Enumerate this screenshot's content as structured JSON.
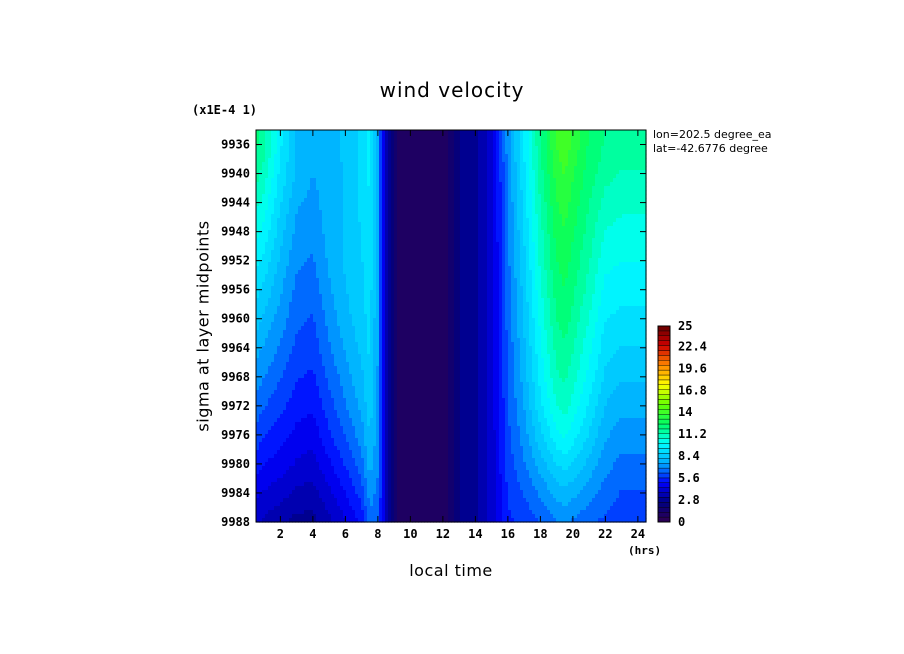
{
  "figure": {
    "title": "wind velocity",
    "scale_note": "(x1E-4 1)",
    "location": {
      "lon": "lon=202.5 degree_ea",
      "lat": "lat=-42.6776 degree"
    }
  },
  "chart_data": {
    "type": "heatmap",
    "title": "wind velocity",
    "xlabel": "local time",
    "x_unit": "(hrs)",
    "ylabel": "sigma at layer midpoints",
    "y_scale_note": "(x1E-4 1)",
    "xlim": [
      0.5,
      24.5
    ],
    "ylim": [
      9934,
      9988
    ],
    "y_inverted": true,
    "x_ticks": [
      2,
      4,
      6,
      8,
      10,
      12,
      14,
      16,
      18,
      20,
      22,
      24
    ],
    "y_ticks": [
      9936,
      9940,
      9944,
      9948,
      9952,
      9956,
      9960,
      9964,
      9968,
      9972,
      9976,
      9980,
      9984,
      9988
    ],
    "x": [
      0.5,
      1,
      2,
      3,
      4,
      5,
      6,
      7,
      7.5,
      8,
      8.5,
      9,
      9.5,
      10,
      11,
      12,
      13,
      14,
      15,
      16,
      17,
      18,
      19,
      19.5,
      20,
      21,
      22,
      23,
      24,
      24.5
    ],
    "y": [
      9936,
      9940,
      9944,
      9948,
      9952,
      9956,
      9960,
      9964,
      9968,
      9972,
      9976,
      9980,
      9984,
      9988
    ],
    "z": [
      [
        12.0,
        11.5,
        9.5,
        8.0,
        7.8,
        8.0,
        8.2,
        9.0,
        9.5,
        7.5,
        3.5,
        1.5,
        0.8,
        0.8,
        0.8,
        0.8,
        2.5,
        3.0,
        4.0,
        7.2,
        9.5,
        11.8,
        13.8,
        14.2,
        13.6,
        12.4,
        11.8,
        11.6,
        11.5,
        11.5
      ],
      [
        11.5,
        11.0,
        9.2,
        8.0,
        7.5,
        7.8,
        8.2,
        9.0,
        9.5,
        7.5,
        3.5,
        1.5,
        0.8,
        0.8,
        0.8,
        0.8,
        2.5,
        3.0,
        4.0,
        7.0,
        9.2,
        11.6,
        13.4,
        13.8,
        13.2,
        12.2,
        11.5,
        11.2,
        11.2,
        11.2
      ],
      [
        10.8,
        10.4,
        8.8,
        7.6,
        7.3,
        7.8,
        8.2,
        8.9,
        9.4,
        7.5,
        3.5,
        1.5,
        0.8,
        0.8,
        0.8,
        0.8,
        2.5,
        3.0,
        4.0,
        6.9,
        9.0,
        11.3,
        13.1,
        13.4,
        12.9,
        11.9,
        11.0,
        10.8,
        10.8,
        10.8
      ],
      [
        10.2,
        9.8,
        8.4,
        7.3,
        7.0,
        7.8,
        8.2,
        8.8,
        9.3,
        7.5,
        3.5,
        1.5,
        0.8,
        0.8,
        0.8,
        0.8,
        2.5,
        3.0,
        4.0,
        6.8,
        8.8,
        11.0,
        12.8,
        13.1,
        12.6,
        11.6,
        10.6,
        10.4,
        10.4,
        10.4
      ],
      [
        9.6,
        9.2,
        8.0,
        7.0,
        6.8,
        7.6,
        8.2,
        8.7,
        9.2,
        7.5,
        3.5,
        1.5,
        0.8,
        0.8,
        0.8,
        0.8,
        2.5,
        3.0,
        4.0,
        6.7,
        8.6,
        10.8,
        12.5,
        12.8,
        12.3,
        11.3,
        10.2,
        10.0,
        10.0,
        10.0
      ],
      [
        9.0,
        8.6,
        7.6,
        6.7,
        6.5,
        7.4,
        8.1,
        8.6,
        9.1,
        7.5,
        3.5,
        1.5,
        0.8,
        0.8,
        0.8,
        0.8,
        2.5,
        3.0,
        4.0,
        6.6,
        8.4,
        10.5,
        12.2,
        12.5,
        12.0,
        11.0,
        9.8,
        9.6,
        9.6,
        9.6
      ],
      [
        8.4,
        8.0,
        7.2,
        6.4,
        6.2,
        7.1,
        7.9,
        8.5,
        9.0,
        7.5,
        3.5,
        1.5,
        0.8,
        0.8,
        0.8,
        0.8,
        2.5,
        3.0,
        4.0,
        6.5,
        8.2,
        10.2,
        11.9,
        12.2,
        11.7,
        10.6,
        9.4,
        9.2,
        9.2,
        9.2
      ],
      [
        7.8,
        7.4,
        6.8,
        6.1,
        5.9,
        6.8,
        7.6,
        8.3,
        8.9,
        7.5,
        3.5,
        1.5,
        0.8,
        0.8,
        0.8,
        0.8,
        2.5,
        3.0,
        4.0,
        6.4,
        8.0,
        9.9,
        11.5,
        11.8,
        11.3,
        10.2,
        9.0,
        8.7,
        8.7,
        8.7
      ],
      [
        7.2,
        6.9,
        6.3,
        5.7,
        5.5,
        6.4,
        7.2,
        8.0,
        8.7,
        7.4,
        3.5,
        1.5,
        0.8,
        0.8,
        0.8,
        0.8,
        2.5,
        3.0,
        4.0,
        6.3,
        7.8,
        9.6,
        11.1,
        11.4,
        10.9,
        9.8,
        8.6,
        8.2,
        8.2,
        8.2
      ],
      [
        6.6,
        6.3,
        5.8,
        5.3,
        5.1,
        6.0,
        6.8,
        7.7,
        8.5,
        7.3,
        3.5,
        1.5,
        0.8,
        0.8,
        0.8,
        0.8,
        2.5,
        3.0,
        4.0,
        6.2,
        7.5,
        9.2,
        10.6,
        10.9,
        10.4,
        9.3,
        8.1,
        7.7,
        7.7,
        7.7
      ],
      [
        6.0,
        5.7,
        5.3,
        4.8,
        4.6,
        5.5,
        6.3,
        7.2,
        8.2,
        7.2,
        3.5,
        1.5,
        0.8,
        0.8,
        0.8,
        0.8,
        2.5,
        3.0,
        4.0,
        6.1,
        7.2,
        8.6,
        9.8,
        10.1,
        9.7,
        8.7,
        7.6,
        7.2,
        7.2,
        7.2
      ],
      [
        5.3,
        5.0,
        4.7,
        4.3,
        4.1,
        4.9,
        5.7,
        6.6,
        7.8,
        7.0,
        3.5,
        1.5,
        0.8,
        0.8,
        0.8,
        0.8,
        2.5,
        3.0,
        4.0,
        5.9,
        6.8,
        7.8,
        8.8,
        9.0,
        8.7,
        7.9,
        7.1,
        6.7,
        6.7,
        6.7
      ],
      [
        4.6,
        4.3,
        4.0,
        3.6,
        3.5,
        4.2,
        5.0,
        5.9,
        7.2,
        6.7,
        3.5,
        1.5,
        0.8,
        0.8,
        0.8,
        0.8,
        2.5,
        3.0,
        4.0,
        5.7,
        6.3,
        7.0,
        7.7,
        7.9,
        7.7,
        7.1,
        6.6,
        6.2,
        6.2,
        6.2
      ],
      [
        3.9,
        3.6,
        3.3,
        2.9,
        2.9,
        3.6,
        4.3,
        5.2,
        6.6,
        6.4,
        3.5,
        1.5,
        0.8,
        0.8,
        0.8,
        0.8,
        2.5,
        3.0,
        4.0,
        5.5,
        5.8,
        6.3,
        6.8,
        7.0,
        6.8,
        6.4,
        6.1,
        5.8,
        5.8,
        5.8
      ]
    ],
    "colorbar": {
      "min": 0,
      "max": 25,
      "tick_labels": [
        "0",
        "2.8",
        "5.6",
        "8.4",
        "11.2",
        "14",
        "16.8",
        "19.6",
        "22.4",
        "25"
      ],
      "tick_values": [
        0,
        2.8,
        5.6,
        8.4,
        11.2,
        14,
        16.8,
        19.6,
        22.4,
        25
      ],
      "colormap_stops": [
        "#300050",
        "#000080",
        "#0000ff",
        "#00aaff",
        "#00ffff",
        "#00ff66",
        "#66ff00",
        "#ffff00",
        "#ff8800",
        "#cc0000",
        "#660000"
      ]
    }
  }
}
